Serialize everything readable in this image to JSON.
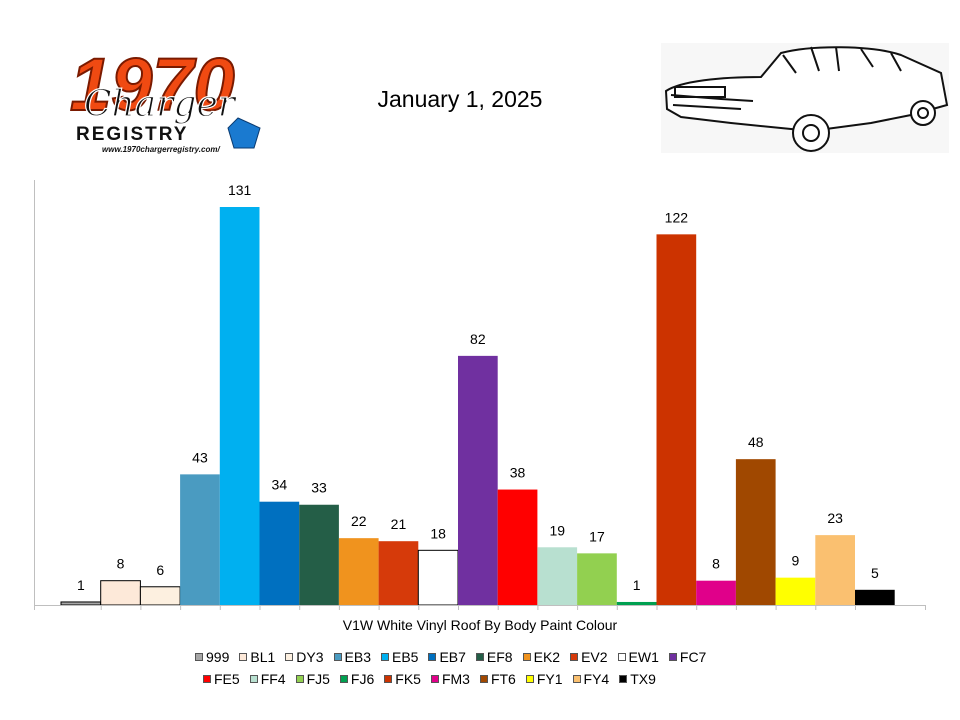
{
  "header": {
    "date": "January 1, 2025",
    "logo_text": {
      "year": "1970",
      "script": "Charger",
      "word": "REGISTRY",
      "url": "www.1970chargerregistry.com/"
    },
    "car_icon": "car-sketch-icon"
  },
  "chart_data": {
    "type": "bar",
    "xlabel": "V1W White Vinyl Roof By Body Paint Colour",
    "ylabel": "",
    "ylim": [
      0,
      140
    ],
    "grid": false,
    "legend_position": "bottom",
    "categories": [
      "999",
      "BL1",
      "DY3",
      "EB3",
      "EB5",
      "EB7",
      "EF8",
      "EK2",
      "EV2",
      "EW1",
      "FC7",
      "FE5",
      "FF4",
      "FJ5",
      "FJ6",
      "FK5",
      "FM3",
      "FT6",
      "FY1",
      "FY4",
      "TX9"
    ],
    "values": [
      1,
      8,
      6,
      43,
      131,
      34,
      33,
      22,
      21,
      18,
      82,
      38,
      19,
      17,
      1,
      122,
      8,
      48,
      9,
      23,
      5
    ],
    "colors": [
      "#a6a6a6",
      "#fde9d9",
      "#fdf0e0",
      "#4a9bc1",
      "#00b0f0",
      "#0070c0",
      "#245e47",
      "#f0931e",
      "#d63a0a",
      "#ffffff",
      "#7030a0",
      "#ff0000",
      "#b8e0d0",
      "#92d050",
      "#00a050",
      "#cc3300",
      "#e0008a",
      "#a04800",
      "#ffff00",
      "#fac070",
      "#000000"
    ],
    "legend_rows": [
      [
        "999",
        "BL1",
        "DY3",
        "EB3",
        "EB5",
        "EB7",
        "EF8",
        "EK2",
        "EV2",
        "EW1",
        "FC7"
      ],
      [
        "FE5",
        "FF4",
        "FJ5",
        "FJ6",
        "FK5",
        "FM3",
        "FT6",
        "FY1",
        "FY4",
        "TX9"
      ]
    ]
  }
}
